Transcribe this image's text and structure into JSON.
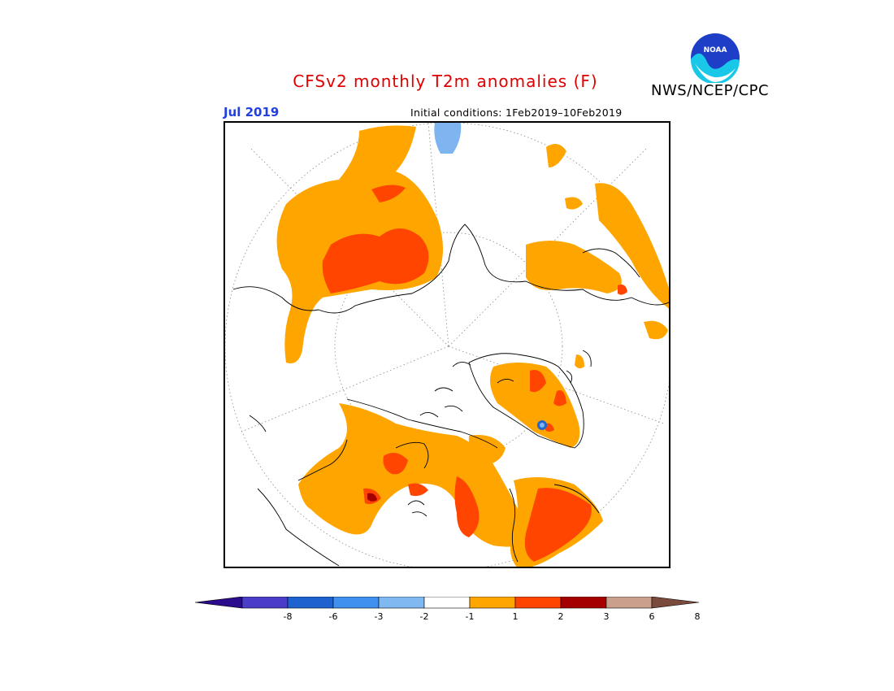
{
  "header": {
    "title": "CFSv2 monthly T2m anomalies (F)",
    "agency": "NWS/NCEP/CPC",
    "logo_text": "NOAA"
  },
  "map": {
    "month_label": "Jul 2019",
    "initial_conditions": "Initial conditions: 1Feb2019–10Feb2019",
    "projection": "north-polar-stereographic",
    "colors": {
      "above_1_to_2": "#ffa500",
      "above_2_to_3": "#ff4500",
      "above_3_to_6": "#a50000",
      "below_minus2_to_minus1": "#7eb4f0",
      "below_minus6_to_minus3": "#2266d0",
      "coastline": "#000000",
      "graticule": "#888888"
    }
  },
  "colorbar": {
    "ticks": [
      "-8",
      "-6",
      "-3",
      "-2",
      "-1",
      "1",
      "2",
      "3",
      "6",
      "8"
    ],
    "colors": [
      "#2a0c8c",
      "#4a3ec8",
      "#1e62d0",
      "#4090f0",
      "#80b8f2",
      "#ffffff",
      "#ffa500",
      "#ff4500",
      "#a50000",
      "#c8a08c",
      "#7a4a3c"
    ]
  }
}
